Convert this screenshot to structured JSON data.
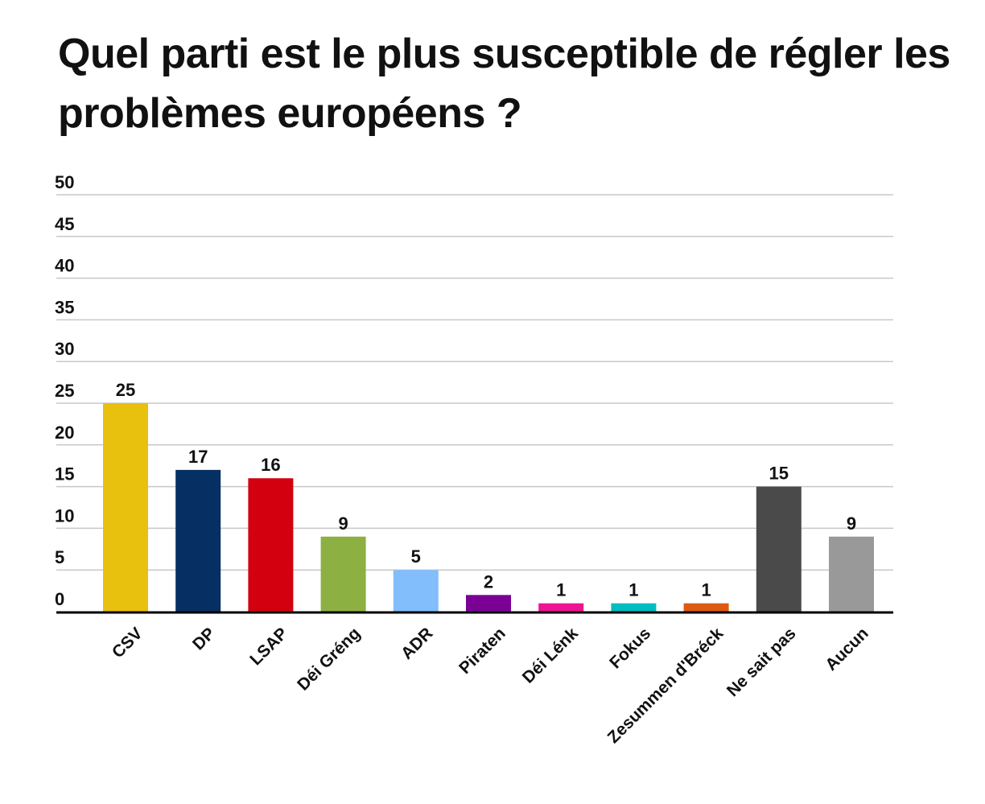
{
  "chart_data": {
    "type": "bar",
    "title": "Quel parti est le plus susceptible de régler les problèmes européens ?",
    "xlabel": "",
    "ylabel": "",
    "ylim": [
      0,
      50
    ],
    "yticks": [
      0,
      5,
      10,
      15,
      20,
      25,
      30,
      35,
      40,
      45,
      50
    ],
    "grid": true,
    "legend": "none",
    "categories": [
      "CSV",
      "DP",
      "LSAP",
      "Déi Gréng",
      "ADR",
      "Piraten",
      "Déi Lénk",
      "Fokus",
      "Zesummen d'Bréck",
      "Ne sait pas",
      "Aucun"
    ],
    "values": [
      25,
      17,
      16,
      9,
      5,
      2,
      1,
      1,
      1,
      15,
      9
    ],
    "colors": [
      "#E8C00E",
      "#062F63",
      "#D3000F",
      "#8DB042",
      "#82BDFC",
      "#7A0096",
      "#EE1393",
      "#00BDC1",
      "#DD5A11",
      "#4A4A4A",
      "#999999"
    ],
    "data_labels": [
      "25",
      "17",
      "16",
      "9",
      "5",
      "2",
      "1",
      "1",
      "1",
      "15",
      "9"
    ]
  }
}
